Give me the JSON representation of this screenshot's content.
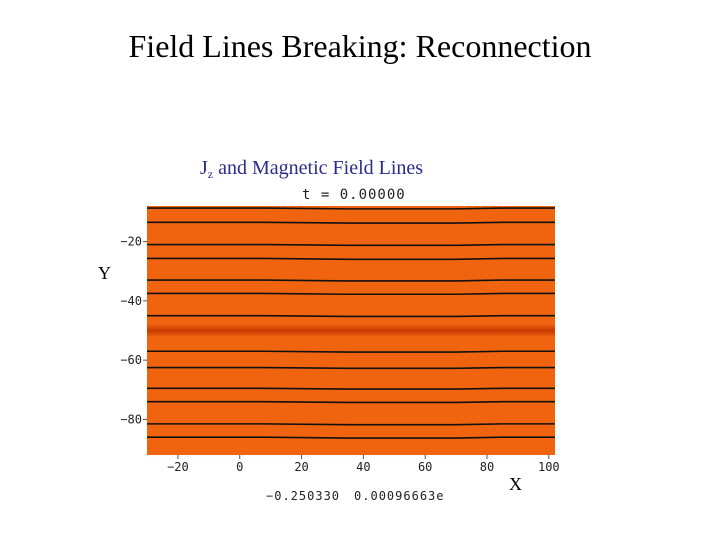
{
  "slide": {
    "title": "Field Lines Breaking: Reconnection"
  },
  "plot": {
    "heading_main": "J",
    "heading_sub": "z",
    "heading_rest": " and  Magnetic Field Lines",
    "time_label": "t = 0.00000",
    "colorbar_min": "−0.250330",
    "colorbar_max": "0.00096663е",
    "x_axis_letter": "X",
    "y_axis_letter": "Y",
    "colors": {
      "background": "#f0640f",
      "current_sheet": "#c83a00",
      "field_line": "#111111",
      "border_dot": "#eeeeee"
    }
  },
  "chart_data": {
    "type": "heatmap",
    "title": "Jz and  Magnetic Field Lines",
    "xlim": [
      -30,
      102
    ],
    "ylim": [
      -92,
      -8
    ],
    "x_ticks": [
      -20,
      0,
      20,
      40,
      60,
      80,
      100
    ],
    "x_tick_labels": [
      "−20",
      "0",
      "20",
      "40",
      "60",
      "80",
      "100"
    ],
    "y_ticks": [
      -20,
      -40,
      -60,
      -80
    ],
    "y_tick_labels": [
      "−20",
      "−40",
      "−60",
      "−80"
    ],
    "current_sheet_y": -50,
    "field_lines_y": [
      -8.7,
      -13.5,
      -21,
      -25.7,
      -33,
      -37.5,
      -45,
      -57,
      -62.5,
      -69.5,
      -74,
      -81.5,
      -86
    ],
    "colorbar_range": [
      "−0.250330",
      "0.00096663е"
    ]
  }
}
